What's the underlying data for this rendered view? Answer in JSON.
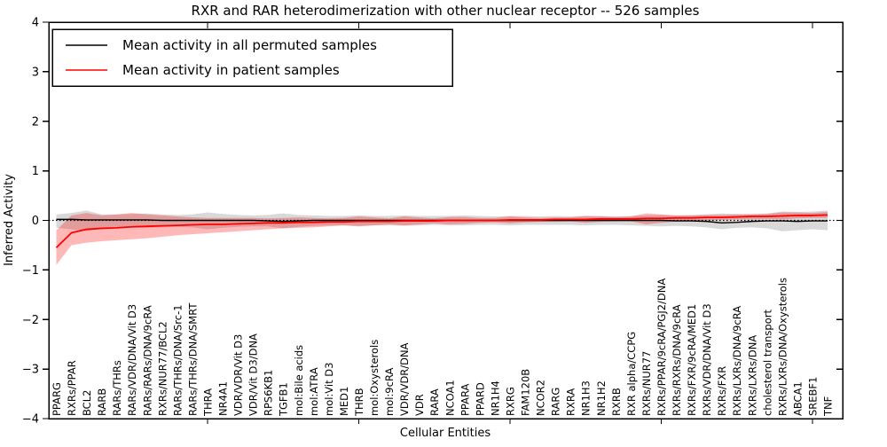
{
  "title": "RXR and RAR heterodimerization with other nuclear receptor -- 526 samples",
  "legend": {
    "entries": [
      {
        "label": "Mean activity in all permuted samples",
        "color": "#000000"
      },
      {
        "label": "Mean activity in patient samples",
        "color": "#ff0000"
      }
    ]
  },
  "chart_data": {
    "type": "line",
    "title": "RXR and RAR heterodimerization with other nuclear receptor -- 526 samples",
    "xlabel": "Cellular Entities",
    "ylabel": "Inferred Activity",
    "ylim": [
      -4,
      4
    ],
    "yticks": [
      -4,
      -3,
      -2,
      -1,
      0,
      1,
      2,
      3,
      4
    ],
    "xtick_indices": [
      10,
      20,
      30,
      40,
      50
    ],
    "grid": false,
    "zero_line": {
      "show": true,
      "style": "dotted",
      "color": "#000000"
    },
    "legend_position": "upper left",
    "categories": [
      "PPARG",
      "RXRs/PPAR",
      "BCL2",
      "RARB",
      "RARs/THRs",
      "RARs/VDR/DNA/Vit D3",
      "RARs/RARs/DNA/9cRA",
      "RXRs/NUR77/BCL2",
      "RARs/THRs/DNA/Src-1",
      "RARs/THRs/DNA/SMRT",
      "THRA",
      "NR4A1",
      "VDR/VDR/Vit D3",
      "VDR/Vit D3/DNA",
      "RPS6KB1",
      "TGFB1",
      "mol:Bile acids",
      "mol:ATRA",
      "mol:Vit D3",
      "MED1",
      "THRB",
      "mol:Oxysterols",
      "mol:9cRA",
      "VDR/VDR/DNA",
      "VDR",
      "RARA",
      "NCOA1",
      "PPARA",
      "PPARD",
      "NR1H4",
      "RXRG",
      "FAM120B",
      "NCOR2",
      "RARG",
      "RXRA",
      "NR1H3",
      "NR1H2",
      "RXRB",
      "RXR alpha/CCPG",
      "RXRs/NUR77",
      "RXRs/PPAR/9cRA/PGJ2/DNA",
      "RXRs/RXRs/DNA/9cRA",
      "RXRs/FXR/9cRA/MED1",
      "RXRs/VDR/DNA/Vit D3",
      "RXRs/FXR",
      "RXRs/LXRs/DNA/9cRA",
      "RXRs/LXRs/DNA",
      "cholesterol transport",
      "RXRs/LXRs/DNA/Oxysterols",
      "ABCA1",
      "SREBF1",
      "TNF"
    ],
    "series": [
      {
        "name": "Mean activity in all permuted samples",
        "color": "#000000",
        "band_color": "rgba(0,0,0,0.15)",
        "values": [
          0.02,
          0.02,
          0.01,
          0.01,
          0.01,
          0.01,
          0.01,
          0.0,
          0.0,
          0.0,
          0.0,
          0.0,
          0.0,
          0.0,
          -0.01,
          -0.02,
          -0.01,
          0.0,
          0.0,
          0.0,
          0.0,
          0.0,
          0.0,
          0.0,
          0.0,
          0.0,
          0.0,
          0.0,
          0.0,
          0.0,
          0.0,
          0.0,
          0.0,
          0.0,
          0.0,
          0.0,
          0.0,
          0.0,
          0.0,
          0.0,
          0.0,
          -0.01,
          -0.01,
          -0.02,
          -0.05,
          -0.04,
          -0.02,
          -0.01,
          -0.01,
          -0.02,
          -0.01,
          -0.01
        ],
        "band_low": [
          -0.15,
          -0.18,
          -0.22,
          -0.15,
          -0.13,
          -0.14,
          -0.15,
          -0.14,
          -0.13,
          -0.14,
          -0.18,
          -0.15,
          -0.13,
          -0.12,
          -0.12,
          -0.16,
          -0.13,
          -0.11,
          -0.1,
          -0.1,
          -0.11,
          -0.1,
          -0.1,
          -0.11,
          -0.1,
          -0.09,
          -0.1,
          -0.1,
          -0.09,
          -0.09,
          -0.1,
          -0.09,
          -0.09,
          -0.09,
          -0.09,
          -0.1,
          -0.09,
          -0.09,
          -0.1,
          -0.11,
          -0.12,
          -0.11,
          -0.12,
          -0.14,
          -0.18,
          -0.15,
          -0.14,
          -0.16,
          -0.22,
          -0.2,
          -0.18,
          -0.2
        ],
        "band_high": [
          0.12,
          0.15,
          0.2,
          0.12,
          0.12,
          0.13,
          0.14,
          0.12,
          0.11,
          0.12,
          0.16,
          0.13,
          0.11,
          0.1,
          0.11,
          0.14,
          0.11,
          0.1,
          0.09,
          0.09,
          0.1,
          0.09,
          0.09,
          0.1,
          0.09,
          0.09,
          0.09,
          0.1,
          0.09,
          0.08,
          0.09,
          0.09,
          0.08,
          0.09,
          0.08,
          0.09,
          0.09,
          0.08,
          0.09,
          0.1,
          0.11,
          0.1,
          0.11,
          0.12,
          0.14,
          0.13,
          0.12,
          0.14,
          0.18,
          0.17,
          0.18,
          0.2
        ]
      },
      {
        "name": "Mean activity in patient samples",
        "color": "#ff0000",
        "band_color": "rgba(255,0,0,0.28)",
        "values": [
          -0.55,
          -0.25,
          -0.18,
          -0.16,
          -0.15,
          -0.13,
          -0.12,
          -0.11,
          -0.1,
          -0.09,
          -0.08,
          -0.08,
          -0.07,
          -0.06,
          -0.05,
          -0.05,
          -0.04,
          -0.04,
          -0.03,
          -0.03,
          -0.02,
          -0.02,
          -0.02,
          -0.01,
          -0.01,
          -0.01,
          0.0,
          0.0,
          0.0,
          0.0,
          0.01,
          0.01,
          0.01,
          0.02,
          0.02,
          0.02,
          0.03,
          0.03,
          0.03,
          0.04,
          0.04,
          0.05,
          0.05,
          0.06,
          0.06,
          0.07,
          0.08,
          0.08,
          0.09,
          0.1,
          0.1,
          0.11
        ],
        "band_low": [
          -0.9,
          -0.5,
          -0.45,
          -0.42,
          -0.4,
          -0.38,
          -0.36,
          -0.33,
          -0.3,
          -0.28,
          -0.26,
          -0.24,
          -0.22,
          -0.2,
          -0.18,
          -0.16,
          -0.15,
          -0.14,
          -0.12,
          -0.1,
          -0.12,
          -0.1,
          -0.08,
          -0.1,
          -0.08,
          -0.06,
          -0.08,
          -0.07,
          -0.05,
          -0.04,
          -0.06,
          -0.04,
          -0.03,
          -0.03,
          -0.02,
          -0.05,
          -0.03,
          -0.02,
          -0.02,
          -0.08,
          -0.05,
          -0.02,
          0.0,
          0.0,
          0.01,
          0.02,
          0.02,
          0.03,
          0.02,
          0.04,
          0.05,
          0.05
        ],
        "band_high": [
          -0.2,
          0.1,
          0.15,
          0.1,
          0.12,
          0.15,
          0.12,
          0.1,
          0.08,
          0.06,
          0.05,
          0.05,
          0.05,
          0.05,
          0.04,
          0.05,
          0.06,
          0.05,
          0.04,
          0.05,
          0.08,
          0.06,
          0.04,
          0.08,
          0.06,
          0.04,
          0.07,
          0.07,
          0.05,
          0.05,
          0.08,
          0.06,
          0.05,
          0.06,
          0.06,
          0.09,
          0.08,
          0.07,
          0.08,
          0.14,
          0.12,
          0.1,
          0.1,
          0.11,
          0.11,
          0.12,
          0.13,
          0.13,
          0.16,
          0.16,
          0.15,
          0.17
        ]
      }
    ]
  }
}
